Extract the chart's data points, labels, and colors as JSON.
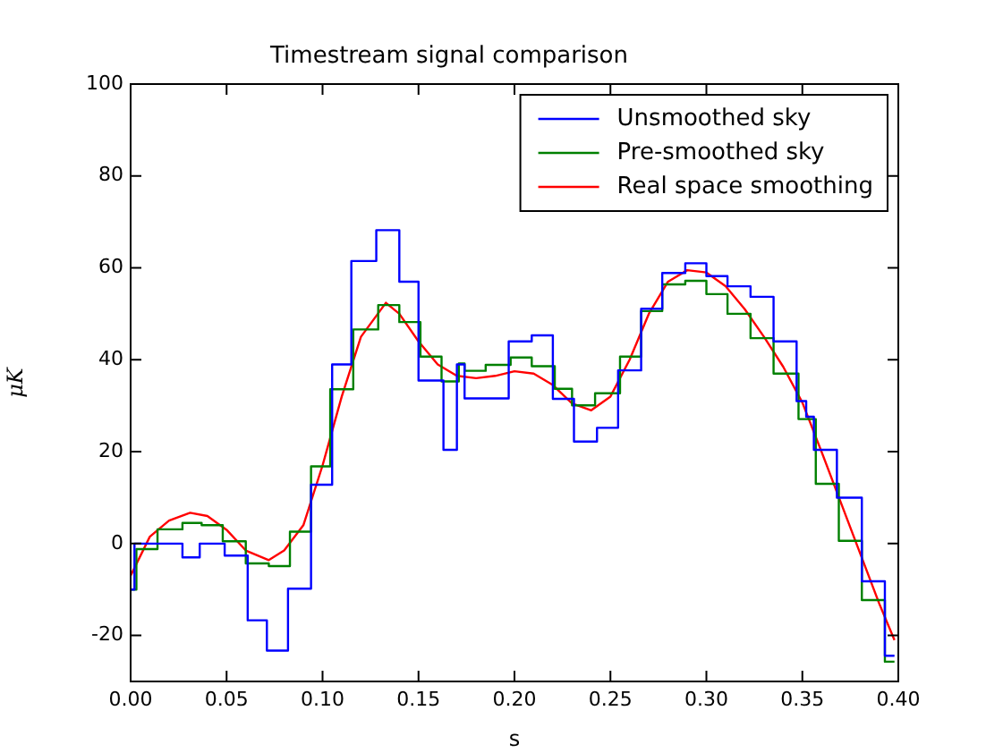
{
  "chart_data": {
    "type": "step",
    "title": "Timestream signal comparison",
    "xlabel": "s",
    "ylabel": "μK",
    "xlim": [
      0,
      0.4
    ],
    "ylim": [
      -30,
      100
    ],
    "xticks": [
      {
        "value": 0,
        "label": "0.00"
      },
      {
        "value": 0.05,
        "label": "0.05"
      },
      {
        "value": 0.1,
        "label": "0.10"
      },
      {
        "value": 0.15,
        "label": "0.15"
      },
      {
        "value": 0.2,
        "label": "0.20"
      },
      {
        "value": 0.25,
        "label": "0.25"
      },
      {
        "value": 0.3,
        "label": "0.30"
      },
      {
        "value": 0.35,
        "label": "0.35"
      },
      {
        "value": 0.4,
        "label": "0.40"
      }
    ],
    "yticks": [
      -20,
      0,
      20,
      40,
      60,
      80,
      100
    ],
    "grid": false,
    "legend": "top right",
    "marker": "none",
    "line_style": "solid",
    "series": [
      {
        "name": "Unsmoothed sky",
        "color": "#0000ff",
        "x": [
          0,
          0.002,
          0.027,
          0.036,
          0.049,
          0.061,
          0.071,
          0.082,
          0.094,
          0.105,
          0.115,
          0.128,
          0.14,
          0.15,
          0.163,
          0.17,
          0.174,
          0.197,
          0.209,
          0.22,
          0.231,
          0.243,
          0.254,
          0.266,
          0.277,
          0.289,
          0.3,
          0.311,
          0.323,
          0.335,
          0.347,
          0.352,
          0.356,
          0.368,
          0.381,
          0.393,
          0.398
        ],
        "values": [
          -10,
          0,
          -3,
          0,
          -2.6,
          -16.7,
          -23.3,
          -9.8,
          12.8,
          39,
          61.5,
          68.2,
          57,
          35.5,
          20.4,
          39,
          31.6,
          44,
          45.3,
          31.5,
          22.2,
          25.2,
          37.7,
          51.1,
          58.9,
          61,
          58.2,
          56,
          53.7,
          44,
          31,
          27.6,
          20.4,
          10,
          -8.2,
          -24.4,
          -24.4
        ]
      },
      {
        "name": "Pre-smoothed sky",
        "color": "#008000",
        "x": [
          0,
          0.003,
          0.014,
          0.027,
          0.037,
          0.048,
          0.06,
          0.072,
          0.083,
          0.094,
          0.104,
          0.116,
          0.129,
          0.14,
          0.151,
          0.162,
          0.171,
          0.174,
          0.185,
          0.198,
          0.209,
          0.221,
          0.23,
          0.242,
          0.255,
          0.266,
          0.277,
          0.289,
          0.3,
          0.311,
          0.323,
          0.335,
          0.348,
          0.357,
          0.369,
          0.381,
          0.393,
          0.398
        ],
        "values": [
          -10,
          -1.2,
          3.1,
          4.5,
          4,
          0.5,
          -4.3,
          -4.9,
          2.6,
          16.8,
          33.6,
          46.6,
          51.9,
          48.2,
          40.7,
          35.3,
          39.2,
          37.6,
          38.9,
          40.5,
          38.6,
          33.7,
          30.1,
          32.7,
          40.7,
          50.6,
          56.4,
          57.2,
          54.3,
          50,
          44.7,
          37,
          27.1,
          13,
          0.6,
          -12.3,
          -25.7,
          -25.7
        ]
      },
      {
        "name": "Real space smoothing",
        "color": "#ff0000",
        "type": "line",
        "x": [
          0,
          0.01,
          0.02,
          0.031,
          0.04,
          0.05,
          0.06,
          0.072,
          0.08,
          0.09,
          0.1,
          0.11,
          0.12,
          0.133,
          0.14,
          0.15,
          0.16,
          0.17,
          0.18,
          0.19,
          0.2,
          0.21,
          0.22,
          0.23,
          0.24,
          0.25,
          0.26,
          0.27,
          0.28,
          0.29,
          0.3,
          0.31,
          0.32,
          0.33,
          0.34,
          0.35,
          0.36,
          0.37,
          0.38,
          0.39,
          0.398
        ],
        "values": [
          -7,
          1.5,
          5,
          6.7,
          6,
          3,
          -1.5,
          -3.6,
          -1.5,
          4,
          17,
          32,
          45,
          52.4,
          50,
          44,
          39,
          36.5,
          36,
          36.5,
          37.5,
          37,
          34.5,
          30.5,
          29,
          32,
          40,
          50,
          57,
          59.5,
          59,
          56,
          51,
          45,
          38.5,
          30.7,
          20,
          9,
          -2,
          -13,
          -21
        ]
      }
    ]
  }
}
